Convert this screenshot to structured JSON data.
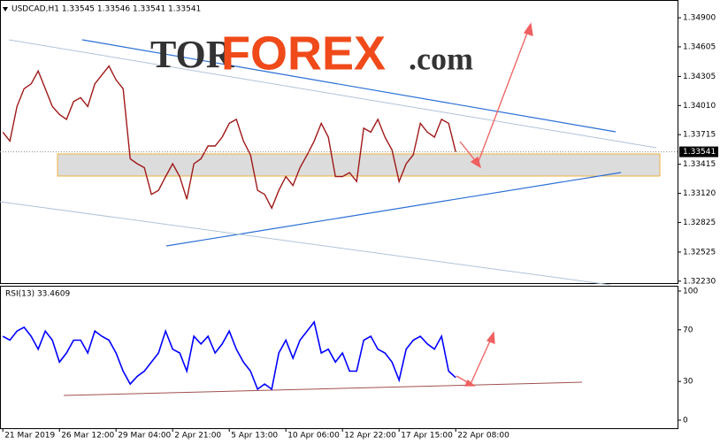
{
  "chart_data": [
    {
      "type": "line",
      "title": "USDCAD,H1  1.33545 1.33546 1.33541 1.33541",
      "watermark": [
        "TOR",
        "FOREX",
        ".com"
      ],
      "series": [
        {
          "name": "USDCAD",
          "color": "#a01818",
          "values": [
            1.3374,
            1.3365,
            1.34,
            1.3418,
            1.3423,
            1.3436,
            1.3418,
            1.34,
            1.3392,
            1.3387,
            1.3405,
            1.3409,
            1.34,
            1.3423,
            1.3432,
            1.3441,
            1.3427,
            1.3418,
            1.3347,
            1.3342,
            1.3338,
            1.3311,
            1.3315,
            1.3329,
            1.3342,
            1.3329,
            1.3306,
            1.3342,
            1.3347,
            1.336,
            1.336,
            1.3369,
            1.3383,
            1.3387,
            1.3365,
            1.3351,
            1.3315,
            1.3311,
            1.3297,
            1.3315,
            1.3329,
            1.332,
            1.3338,
            1.3351,
            1.3365,
            1.3383,
            1.3369,
            1.3329,
            1.3329,
            1.3333,
            1.3324,
            1.3378,
            1.3374,
            1.3387,
            1.3369,
            1.3356,
            1.3324,
            1.3342,
            1.3351,
            1.3383,
            1.3374,
            1.3369,
            1.3387,
            1.3383,
            1.3354
          ]
        }
      ],
      "current_price": {
        "value": 1.33541,
        "label": "1.33541"
      },
      "xlim": [
        -0.4,
        95.35
      ],
      "ylim": [
        1.3221,
        1.3508
      ],
      "yticks": [
        {
          "value": 1.349,
          "label": "1.34900"
        },
        {
          "value": 1.34605,
          "label": "1.34605"
        },
        {
          "value": 1.34305,
          "label": "1.34305"
        },
        {
          "value": 1.3401,
          "label": "1.34010"
        },
        {
          "value": 1.33715,
          "label": "1.33715"
        },
        {
          "value": 1.33415,
          "label": "1.33415"
        },
        {
          "value": 1.3312,
          "label": "1.33120"
        },
        {
          "value": 1.32825,
          "label": "1.32825"
        },
        {
          "value": 1.32525,
          "label": "1.32525"
        },
        {
          "value": 1.3223,
          "label": "1.32230"
        }
      ],
      "xticks": [
        {
          "value": 0,
          "label": "21 Mar 2019"
        },
        {
          "value": 8,
          "label": "26 Mar 12:00"
        },
        {
          "value": 16,
          "label": "29 Mar 04:00"
        },
        {
          "value": 24,
          "label": "2 Apr 21:00"
        },
        {
          "value": 32,
          "label": "5 Apr 13:00"
        },
        {
          "value": 40,
          "label": "10 Apr 06:00"
        },
        {
          "value": 48,
          "label": "12 Apr 22:00"
        },
        {
          "value": 56,
          "label": "17 Apr 15:00"
        },
        {
          "value": 64,
          "label": "22 Apr 08:00"
        }
      ]
    },
    {
      "type": "line",
      "title": "RSI(13) 33.4609",
      "series": [
        {
          "name": "RSI(13)",
          "color": "#0000ff",
          "values": [
            65,
            62,
            69,
            72,
            65,
            55,
            69,
            62,
            45,
            52,
            62,
            62,
            52,
            69,
            65,
            62,
            52,
            38,
            28,
            34,
            38,
            45,
            52,
            69,
            55,
            52,
            38,
            65,
            59,
            65,
            52,
            59,
            69,
            55,
            45,
            38,
            24,
            28,
            24,
            52,
            62,
            48,
            62,
            69,
            76,
            52,
            55,
            45,
            52,
            38,
            38,
            62,
            65,
            55,
            52,
            45,
            31,
            55,
            62,
            65,
            59,
            55,
            65,
            38,
            33
          ]
        }
      ],
      "xlim": [
        -0.4,
        95.35
      ],
      "ylim": [
        -6.2,
        104.1
      ],
      "yticks": [
        100,
        70,
        30,
        0
      ]
    }
  ]
}
